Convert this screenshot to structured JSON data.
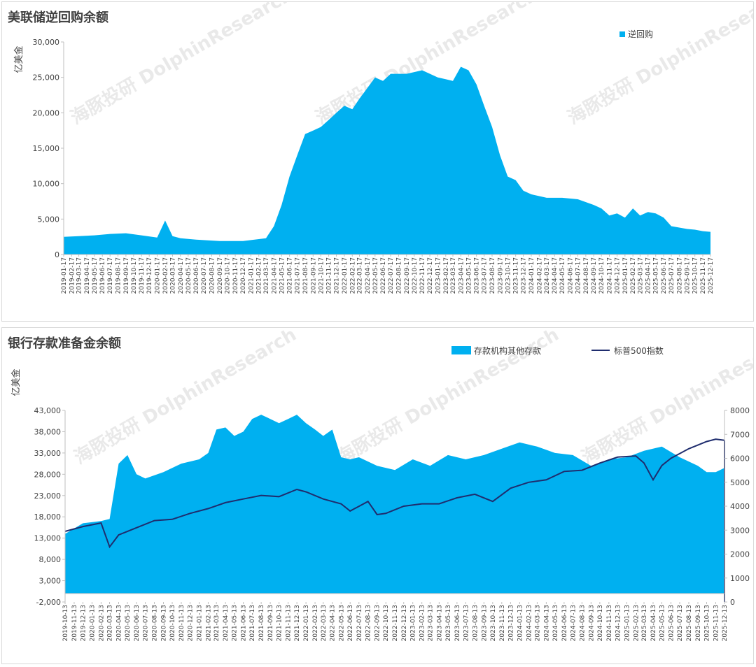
{
  "charts": [
    {
      "title": "美联储逆回购余额",
      "ylabel": "亿美金",
      "legend": "逆回购",
      "watermark_cn": "海豚投研",
      "watermark_en": "DolphinResearch"
    },
    {
      "title": "银行存款准备金余额",
      "ylabel": "亿美金",
      "legend_area": "存款机构其他存款",
      "legend_line": "标普500指数",
      "watermark_cn": "海豚投研",
      "watermark_en": "DolphinResearch"
    }
  ],
  "chart_data": [
    {
      "type": "area",
      "title": "美联储逆回购余额",
      "ylabel": "亿美金",
      "ylim": [
        0,
        30000
      ],
      "yticks": [
        0,
        5000,
        10000,
        15000,
        20000,
        25000,
        30000
      ],
      "ytick_labels": [
        "0",
        "5,000",
        "10,000",
        "15,000",
        "20,000",
        "25,000",
        "30,000"
      ],
      "color": "#00b0f0",
      "legend_position": "top-right",
      "x_tick_labels": [
        "2019-01-17",
        "2019-02-17",
        "2019-03-17",
        "2019-04-17",
        "2019-05-17",
        "2019-06-17",
        "2019-07-17",
        "2019-08-17",
        "2019-09-17",
        "2019-10-17",
        "2019-11-17",
        "2019-12-17",
        "2020-01-17",
        "2020-02-17",
        "2020-03-17",
        "2020-04-17",
        "2020-05-17",
        "2020-06-17",
        "2020-07-17",
        "2020-08-17",
        "2020-09-17",
        "2020-10-17",
        "2020-11-17",
        "2020-12-17",
        "2021-01-17",
        "2021-02-17",
        "2021-03-17",
        "2021-04-17",
        "2021-05-17",
        "2021-06-17",
        "2021-07-17",
        "2021-08-17",
        "2021-09-17",
        "2021-10-17",
        "2021-11-17",
        "2021-12-17",
        "2022-01-17",
        "2022-02-17",
        "2022-03-17",
        "2022-04-17",
        "2022-05-17",
        "2022-06-17",
        "2022-07-17",
        "2022-08-17",
        "2022-09-17",
        "2022-10-17",
        "2022-11-17",
        "2022-12-17",
        "2023-01-17",
        "2023-02-17",
        "2023-03-17",
        "2023-04-17",
        "2023-05-17",
        "2023-06-17",
        "2023-07-17",
        "2023-08-17",
        "2023-09-17",
        "2023-10-17",
        "2023-11-17",
        "2023-12-17",
        "2024-01-17",
        "2024-02-17",
        "2024-03-17",
        "2024-04-17",
        "2024-05-17",
        "2024-06-17",
        "2024-07-17",
        "2024-08-17",
        "2024-09-17",
        "2024-10-17",
        "2024-11-17",
        "2024-12-17",
        "2025-01-17",
        "2025-02-17",
        "2025-03-17",
        "2025-04-17",
        "2025-05-17",
        "2025-06-17",
        "2025-07-17",
        "2025-08-17",
        "2025-09-17",
        "2025-10-17",
        "2025-11-17",
        "2025-12-17"
      ],
      "series": [
        {
          "name": "逆回购",
          "x": [
            "2019-01-17",
            "2019-03-17",
            "2019-05-17",
            "2019-07-17",
            "2019-09-17",
            "2019-11-17",
            "2020-01-17",
            "2020-02-17",
            "2020-03-17",
            "2020-04-17",
            "2020-06-17",
            "2020-09-17",
            "2020-12-17",
            "2021-03-17",
            "2021-04-17",
            "2021-05-17",
            "2021-06-17",
            "2021-07-17",
            "2021-08-17",
            "2021-09-17",
            "2021-10-17",
            "2021-11-17",
            "2021-12-17",
            "2022-01-17",
            "2022-02-17",
            "2022-03-17",
            "2022-04-17",
            "2022-05-17",
            "2022-06-17",
            "2022-07-17",
            "2022-09-17",
            "2022-11-17",
            "2023-01-17",
            "2023-03-17",
            "2023-04-17",
            "2023-05-17",
            "2023-06-17",
            "2023-07-17",
            "2023-08-17",
            "2023-09-17",
            "2023-10-17",
            "2023-11-17",
            "2023-12-17",
            "2024-01-17",
            "2024-03-17",
            "2024-05-17",
            "2024-07-17",
            "2024-09-17",
            "2024-10-17",
            "2024-11-17",
            "2024-12-17",
            "2025-01-17",
            "2025-02-17",
            "2025-03-17",
            "2025-04-17",
            "2025-05-17",
            "2025-06-17",
            "2025-07-17",
            "2025-08-17",
            "2025-09-17",
            "2025-10-17",
            "2025-11-17",
            "2025-12-17"
          ],
          "values": [
            2500,
            2600,
            2700,
            2900,
            3000,
            2700,
            2400,
            4800,
            2600,
            2300,
            2100,
            1900,
            1900,
            2300,
            4000,
            7000,
            11000,
            14000,
            17000,
            17500,
            18000,
            19000,
            20000,
            21000,
            20500,
            22000,
            23500,
            25000,
            24500,
            25500,
            25500,
            26000,
            25000,
            24500,
            26500,
            26000,
            24000,
            21000,
            18000,
            14000,
            11000,
            10500,
            9000,
            8500,
            8000,
            8000,
            7800,
            7000,
            6500,
            5500,
            5800,
            5200,
            6500,
            5500,
            6000,
            5800,
            5200,
            4000,
            3800,
            3600,
            3500,
            3300,
            3200
          ]
        }
      ]
    },
    {
      "type": "area+line",
      "title": "银行存款准备金余额",
      "ylabel": "亿美金",
      "ylim": [
        -2000,
        43000
      ],
      "yticks": [
        -2000,
        3000,
        8000,
        13000,
        18000,
        23000,
        28000,
        33000,
        38000,
        43000
      ],
      "ytick_labels": [
        "-2,000",
        "3,000",
        "8,000",
        "13,000",
        "18,000",
        "23,000",
        "28,000",
        "33,000",
        "38,000",
        "43,000"
      ],
      "y2lim": [
        0,
        8000
      ],
      "y2ticks": [
        0,
        1000,
        2000,
        3000,
        4000,
        5000,
        6000,
        7000,
        8000
      ],
      "legend_position": "top-right",
      "x_tick_labels": [
        "2019-10-13",
        "2019-11-13",
        "2019-12-13",
        "2020-01-13",
        "2020-02-13",
        "2020-03-13",
        "2020-04-13",
        "2020-05-13",
        "2020-06-13",
        "2020-07-13",
        "2020-08-13",
        "2020-09-13",
        "2020-10-13",
        "2020-11-13",
        "2020-12-13",
        "2021-01-13",
        "2021-02-13",
        "2021-03-13",
        "2021-04-13",
        "2021-05-13",
        "2021-06-13",
        "2021-07-13",
        "2021-08-13",
        "2021-09-13",
        "2021-10-13",
        "2021-11-13",
        "2021-12-13",
        "2022-01-13",
        "2022-02-13",
        "2022-03-13",
        "2022-04-13",
        "2022-05-13",
        "2022-06-13",
        "2022-07-13",
        "2022-08-13",
        "2022-09-13",
        "2022-10-13",
        "2022-11-13",
        "2022-12-13",
        "2023-01-13",
        "2023-02-13",
        "2023-03-13",
        "2023-04-13",
        "2023-05-13",
        "2023-06-13",
        "2023-07-13",
        "2023-08-13",
        "2023-09-13",
        "2023-10-13",
        "2023-11-13",
        "2023-12-13",
        "2024-01-13",
        "2024-02-13",
        "2024-03-13",
        "2024-04-13",
        "2024-05-13",
        "2024-06-13",
        "2024-07-13",
        "2024-08-13",
        "2024-09-13",
        "2024-10-13",
        "2024-11-13",
        "2024-12-13",
        "2025-01-13",
        "2025-02-13",
        "2025-03-13",
        "2025-04-13",
        "2025-05-13",
        "2025-06-13",
        "2025-07-13",
        "2025-08-13",
        "2025-09-13",
        "2025-10-13",
        "2025-11-13",
        "2025-12-13"
      ],
      "series": [
        {
          "name": "存款机构其他存款",
          "axis": "left",
          "color": "#00b0f0",
          "x": [
            "2019-10-13",
            "2019-12-13",
            "2020-02-13",
            "2020-03-13",
            "2020-04-13",
            "2020-05-13",
            "2020-06-13",
            "2020-07-13",
            "2020-09-13",
            "2020-11-13",
            "2021-01-13",
            "2021-02-13",
            "2021-03-13",
            "2021-04-13",
            "2021-05-13",
            "2021-06-13",
            "2021-07-13",
            "2021-08-13",
            "2021-09-13",
            "2021-10-13",
            "2021-11-13",
            "2021-12-13",
            "2022-01-13",
            "2022-02-13",
            "2022-03-13",
            "2022-04-13",
            "2022-05-13",
            "2022-06-13",
            "2022-07-13",
            "2022-09-13",
            "2022-11-13",
            "2023-01-13",
            "2023-03-13",
            "2023-05-13",
            "2023-07-13",
            "2023-09-13",
            "2023-11-13",
            "2024-01-13",
            "2024-03-13",
            "2024-05-13",
            "2024-07-13",
            "2024-09-13",
            "2024-11-13",
            "2025-01-13",
            "2025-03-13",
            "2025-05-13",
            "2025-07-13",
            "2025-09-13",
            "2025-10-13",
            "2025-11-13",
            "2025-12-13"
          ],
          "values": [
            14000,
            16500,
            17000,
            17500,
            30500,
            32500,
            28000,
            27000,
            28500,
            30500,
            31500,
            33000,
            38500,
            39000,
            37000,
            38000,
            41000,
            42000,
            41000,
            40000,
            41000,
            42000,
            40000,
            38500,
            37000,
            38500,
            32000,
            31500,
            32000,
            30000,
            29000,
            31500,
            30000,
            32500,
            31500,
            32500,
            34000,
            35500,
            34500,
            33000,
            32500,
            30000,
            31500,
            32000,
            33500,
            34500,
            32000,
            30000,
            28500,
            28500,
            29500
          ]
        },
        {
          "name": "标普500指数",
          "axis": "right",
          "color": "#1f2d6e",
          "x": [
            "2019-10-13",
            "2019-12-13",
            "2020-02-13",
            "2020-03-13",
            "2020-04-13",
            "2020-06-13",
            "2020-08-13",
            "2020-10-13",
            "2020-12-13",
            "2021-02-13",
            "2021-04-13",
            "2021-06-13",
            "2021-08-13",
            "2021-10-13",
            "2021-12-13",
            "2022-01-13",
            "2022-03-13",
            "2022-05-13",
            "2022-06-13",
            "2022-08-13",
            "2022-09-13",
            "2022-10-13",
            "2022-12-13",
            "2023-02-13",
            "2023-04-13",
            "2023-06-13",
            "2023-08-13",
            "2023-10-13",
            "2023-12-13",
            "2024-02-13",
            "2024-04-13",
            "2024-06-13",
            "2024-08-13",
            "2024-10-13",
            "2024-12-13",
            "2025-02-13",
            "2025-03-13",
            "2025-04-13",
            "2025-05-13",
            "2025-06-13",
            "2025-08-13",
            "2025-10-13",
            "2025-11-13",
            "2025-12-13"
          ],
          "values": [
            2950,
            3150,
            3300,
            2300,
            2800,
            3100,
            3400,
            3450,
            3700,
            3900,
            4150,
            4300,
            4450,
            4400,
            4700,
            4600,
            4300,
            4100,
            3800,
            4200,
            3650,
            3700,
            4000,
            4100,
            4100,
            4350,
            4500,
            4200,
            4750,
            5000,
            5100,
            5450,
            5500,
            5800,
            6050,
            6100,
            5800,
            5100,
            5700,
            6000,
            6400,
            6700,
            6800,
            6750
          ]
        }
      ]
    }
  ]
}
